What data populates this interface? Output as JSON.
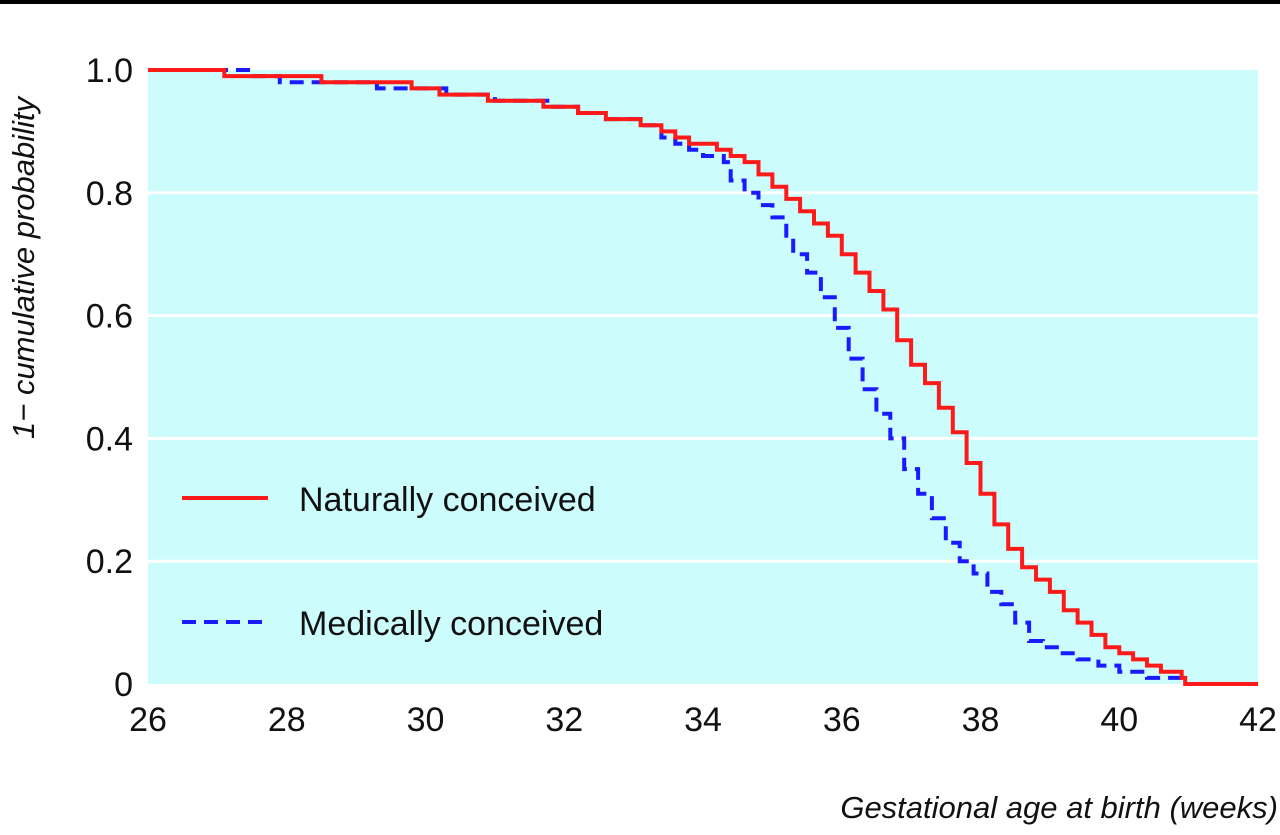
{
  "chart_data": {
    "type": "line",
    "step": true,
    "xlabel": "Gestational age at birth (weeks)",
    "ylabel": "1− cumulative probability",
    "xlim": [
      26,
      42
    ],
    "ylim": [
      0,
      1.0
    ],
    "x_ticks": [
      "26",
      "28",
      "30",
      "32",
      "34",
      "36",
      "38",
      "40",
      "42"
    ],
    "y_ticks": [
      "0",
      "0.2",
      "0.4",
      "0.6",
      "0.8",
      "1.0"
    ],
    "grid": true,
    "background": "#ccfcfc",
    "legend_position": "bottom-left",
    "series": [
      {
        "name": "Naturally conceived",
        "color": "#ff1a1a",
        "style": "solid",
        "points": [
          [
            26.0,
            1.0
          ],
          [
            27.1,
            0.99
          ],
          [
            28.5,
            0.98
          ],
          [
            29.8,
            0.97
          ],
          [
            30.2,
            0.96
          ],
          [
            30.9,
            0.95
          ],
          [
            31.7,
            0.94
          ],
          [
            32.2,
            0.93
          ],
          [
            32.6,
            0.92
          ],
          [
            33.1,
            0.91
          ],
          [
            33.4,
            0.9
          ],
          [
            33.6,
            0.89
          ],
          [
            33.8,
            0.88
          ],
          [
            34.2,
            0.87
          ],
          [
            34.4,
            0.86
          ],
          [
            34.6,
            0.85
          ],
          [
            34.8,
            0.83
          ],
          [
            35.0,
            0.81
          ],
          [
            35.2,
            0.79
          ],
          [
            35.4,
            0.77
          ],
          [
            35.6,
            0.75
          ],
          [
            35.8,
            0.73
          ],
          [
            36.0,
            0.7
          ],
          [
            36.2,
            0.67
          ],
          [
            36.4,
            0.64
          ],
          [
            36.6,
            0.61
          ],
          [
            36.8,
            0.56
          ],
          [
            37.0,
            0.52
          ],
          [
            37.2,
            0.49
          ],
          [
            37.4,
            0.45
          ],
          [
            37.6,
            0.41
          ],
          [
            37.8,
            0.36
          ],
          [
            38.0,
            0.31
          ],
          [
            38.2,
            0.26
          ],
          [
            38.4,
            0.22
          ],
          [
            38.6,
            0.19
          ],
          [
            38.8,
            0.17
          ],
          [
            39.0,
            0.15
          ],
          [
            39.2,
            0.12
          ],
          [
            39.4,
            0.1
          ],
          [
            39.6,
            0.08
          ],
          [
            39.8,
            0.06
          ],
          [
            40.0,
            0.05
          ],
          [
            40.2,
            0.04
          ],
          [
            40.4,
            0.03
          ],
          [
            40.6,
            0.02
          ],
          [
            40.9,
            0.01
          ],
          [
            40.95,
            0.0
          ],
          [
            42.0,
            0.0
          ]
        ]
      },
      {
        "name": "Medically conceived",
        "color": "#1a1aff",
        "style": "dashed",
        "points": [
          [
            26.0,
            1.0
          ],
          [
            27.5,
            0.99
          ],
          [
            27.9,
            0.98
          ],
          [
            29.3,
            0.97
          ],
          [
            30.3,
            0.96
          ],
          [
            31.0,
            0.95
          ],
          [
            31.8,
            0.94
          ],
          [
            32.2,
            0.93
          ],
          [
            32.6,
            0.92
          ],
          [
            33.1,
            0.91
          ],
          [
            33.4,
            0.89
          ],
          [
            33.6,
            0.88
          ],
          [
            33.8,
            0.87
          ],
          [
            34.0,
            0.86
          ],
          [
            34.3,
            0.85
          ],
          [
            34.4,
            0.82
          ],
          [
            34.6,
            0.8
          ],
          [
            34.8,
            0.78
          ],
          [
            35.0,
            0.76
          ],
          [
            35.2,
            0.73
          ],
          [
            35.3,
            0.7
          ],
          [
            35.5,
            0.67
          ],
          [
            35.7,
            0.63
          ],
          [
            35.9,
            0.58
          ],
          [
            36.1,
            0.53
          ],
          [
            36.3,
            0.48
          ],
          [
            36.5,
            0.44
          ],
          [
            36.7,
            0.4
          ],
          [
            36.9,
            0.35
          ],
          [
            37.1,
            0.31
          ],
          [
            37.3,
            0.27
          ],
          [
            37.5,
            0.23
          ],
          [
            37.7,
            0.2
          ],
          [
            37.9,
            0.18
          ],
          [
            38.1,
            0.15
          ],
          [
            38.3,
            0.13
          ],
          [
            38.5,
            0.1
          ],
          [
            38.7,
            0.07
          ],
          [
            38.9,
            0.06
          ],
          [
            39.1,
            0.05
          ],
          [
            39.4,
            0.04
          ],
          [
            39.7,
            0.03
          ],
          [
            40.0,
            0.02
          ],
          [
            40.4,
            0.01
          ],
          [
            40.9,
            0.0
          ],
          [
            42.0,
            0.0
          ]
        ]
      }
    ]
  }
}
